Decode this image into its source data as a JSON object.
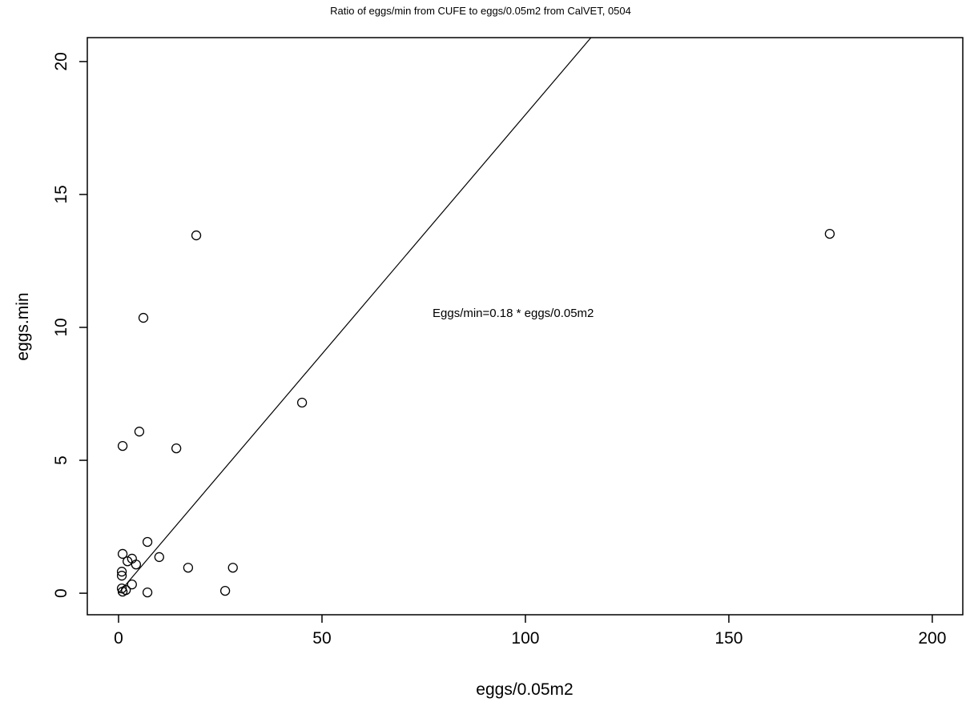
{
  "chart_data": {
    "type": "scatter",
    "title": "Ratio of eggs/min from CUFE to eggs/0.05m2 from CalVET, 0504",
    "xlabel": "eggs/0.05m2",
    "ylabel": "eggs.min",
    "annotation": "Eggs/min=0.18 * eggs/0.05m2",
    "x": [
      19.1,
      174.8,
      6.1,
      45.1,
      5.1,
      1.0,
      14.2,
      7.1,
      1.0,
      10.0,
      3.3,
      2.2,
      4.3,
      17.1,
      28.1,
      0.8,
      0.8,
      3.3,
      0.8,
      1.8,
      1.0,
      7.1,
      26.2
    ],
    "values": [
      13.46,
      13.52,
      10.36,
      7.17,
      6.08,
      5.54,
      5.45,
      1.93,
      1.48,
      1.36,
      1.3,
      1.2,
      1.08,
      0.96,
      0.96,
      0.81,
      0.66,
      0.33,
      0.18,
      0.12,
      0.06,
      0.03,
      0.09
    ],
    "color": "#000000",
    "line": {
      "x": [
        0,
        120
      ],
      "values": [
        0,
        21.6
      ]
    },
    "xlim": [
      -7.68,
      207.5
    ],
    "ylim": [
      -0.81,
      20.9
    ],
    "xticks": [
      0,
      50,
      100,
      150,
      200
    ],
    "yticks": [
      0,
      5,
      10,
      15,
      20
    ]
  }
}
